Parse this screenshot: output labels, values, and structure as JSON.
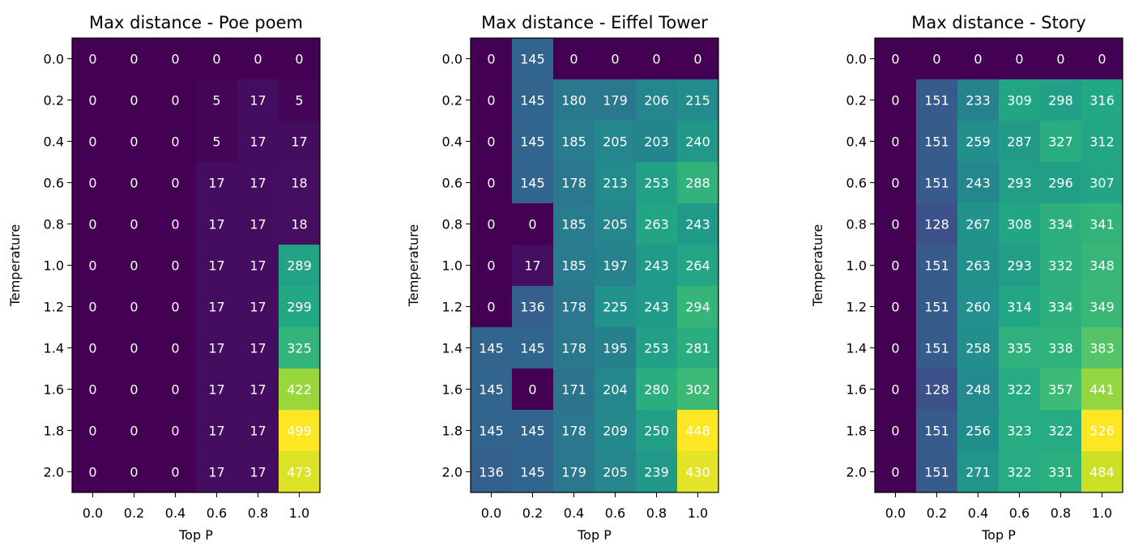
{
  "chart_data": [
    {
      "type": "heatmap",
      "title": "Max distance - Poe poem",
      "xlabel": "Top P",
      "ylabel": "Temperature",
      "x_ticks": [
        "0.0",
        "0.2",
        "0.4",
        "0.6",
        "0.8",
        "1.0"
      ],
      "y_ticks": [
        "0.0",
        "0.2",
        "0.4",
        "0.6",
        "0.8",
        "1.0",
        "1.2",
        "1.4",
        "1.6",
        "1.8",
        "2.0"
      ],
      "colormap": "viridis",
      "values": [
        [
          0,
          0,
          0,
          0,
          0,
          0
        ],
        [
          0,
          0,
          0,
          5,
          17,
          5
        ],
        [
          0,
          0,
          0,
          5,
          17,
          17
        ],
        [
          0,
          0,
          0,
          17,
          17,
          18
        ],
        [
          0,
          0,
          0,
          17,
          17,
          18
        ],
        [
          0,
          0,
          0,
          17,
          17,
          289
        ],
        [
          0,
          0,
          0,
          17,
          17,
          299
        ],
        [
          0,
          0,
          0,
          17,
          17,
          325
        ],
        [
          0,
          0,
          0,
          17,
          17,
          422
        ],
        [
          0,
          0,
          0,
          17,
          17,
          499
        ],
        [
          0,
          0,
          0,
          17,
          17,
          473
        ]
      ]
    },
    {
      "type": "heatmap",
      "title": "Max distance - Eiffel Tower",
      "xlabel": "Top P",
      "ylabel": "Temperature",
      "x_ticks": [
        "0.0",
        "0.2",
        "0.4",
        "0.6",
        "0.8",
        "1.0"
      ],
      "y_ticks": [
        "0.0",
        "0.2",
        "0.4",
        "0.6",
        "0.8",
        "1.0",
        "1.2",
        "1.4",
        "1.6",
        "1.8",
        "2.0"
      ],
      "colormap": "viridis",
      "values": [
        [
          0,
          145,
          0,
          0,
          0,
          0
        ],
        [
          0,
          145,
          180,
          179,
          206,
          215
        ],
        [
          0,
          145,
          185,
          205,
          203,
          240
        ],
        [
          0,
          145,
          178,
          213,
          253,
          288
        ],
        [
          0,
          0,
          185,
          205,
          263,
          243
        ],
        [
          0,
          17,
          185,
          197,
          243,
          264
        ],
        [
          0,
          136,
          178,
          225,
          243,
          294
        ],
        [
          145,
          145,
          178,
          195,
          253,
          281
        ],
        [
          145,
          0,
          171,
          204,
          280,
          302
        ],
        [
          145,
          145,
          178,
          209,
          250,
          448
        ],
        [
          136,
          145,
          179,
          205,
          239,
          430
        ]
      ]
    },
    {
      "type": "heatmap",
      "title": "Max distance - Story",
      "xlabel": "Top P",
      "ylabel": "Temperature",
      "x_ticks": [
        "0.0",
        "0.2",
        "0.4",
        "0.6",
        "0.8",
        "1.0"
      ],
      "y_ticks": [
        "0.0",
        "0.2",
        "0.4",
        "0.6",
        "0.8",
        "1.0",
        "1.2",
        "1.4",
        "1.6",
        "1.8",
        "2.0"
      ],
      "colormap": "viridis",
      "values": [
        [
          0,
          0,
          0,
          0,
          0,
          0
        ],
        [
          0,
          151,
          233,
          309,
          298,
          316
        ],
        [
          0,
          151,
          259,
          287,
          327,
          312
        ],
        [
          0,
          151,
          243,
          293,
          296,
          307
        ],
        [
          0,
          128,
          267,
          308,
          334,
          341
        ],
        [
          0,
          151,
          263,
          293,
          332,
          348
        ],
        [
          0,
          151,
          260,
          314,
          334,
          349
        ],
        [
          0,
          151,
          258,
          335,
          338,
          383
        ],
        [
          0,
          128,
          248,
          322,
          357,
          441
        ],
        [
          0,
          151,
          256,
          323,
          322,
          526
        ],
        [
          0,
          151,
          271,
          322,
          331,
          484
        ]
      ]
    }
  ]
}
